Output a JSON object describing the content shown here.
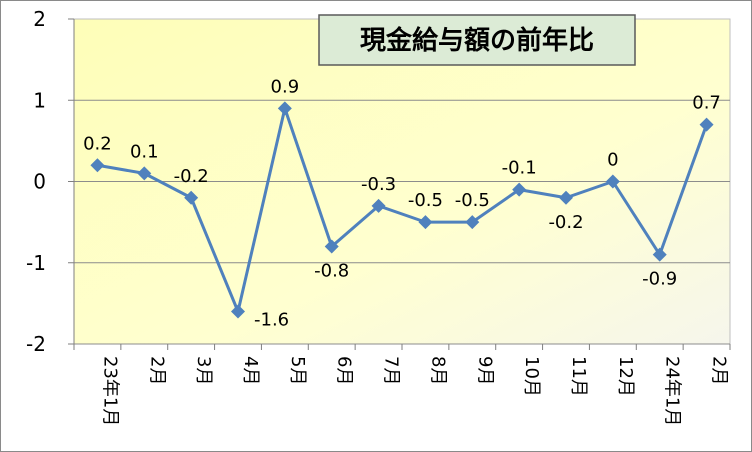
{
  "chart_data": {
    "type": "line",
    "title": "現金給与額の前年比",
    "categories": [
      "23年1月",
      "2月",
      "3月",
      "4月",
      "5月",
      "6月",
      "7月",
      "8月",
      "9月",
      "10月",
      "11月",
      "12月",
      "24年1月",
      "2月"
    ],
    "values": [
      0.2,
      0.1,
      -0.2,
      -1.6,
      0.9,
      -0.8,
      -0.3,
      -0.5,
      -0.5,
      -0.1,
      -0.2,
      0,
      -0.9,
      0.7
    ],
    "data_labels": [
      "0.2",
      "0.1",
      "-0.2",
      "-1.6",
      "0.9",
      "-0.8",
      "-0.3",
      "-0.5",
      "-0.5",
      "-0.1",
      "-0.2",
      "0",
      "-0.9",
      "0.7"
    ],
    "ylim": [
      -2,
      2
    ],
    "yticks": [
      "2",
      "1",
      "0",
      "-1",
      "-2"
    ],
    "grid": true,
    "colors": {
      "plot_bg": "#ffffc0",
      "line": "#4f81bd",
      "title_bg": "#dcebd6"
    }
  }
}
